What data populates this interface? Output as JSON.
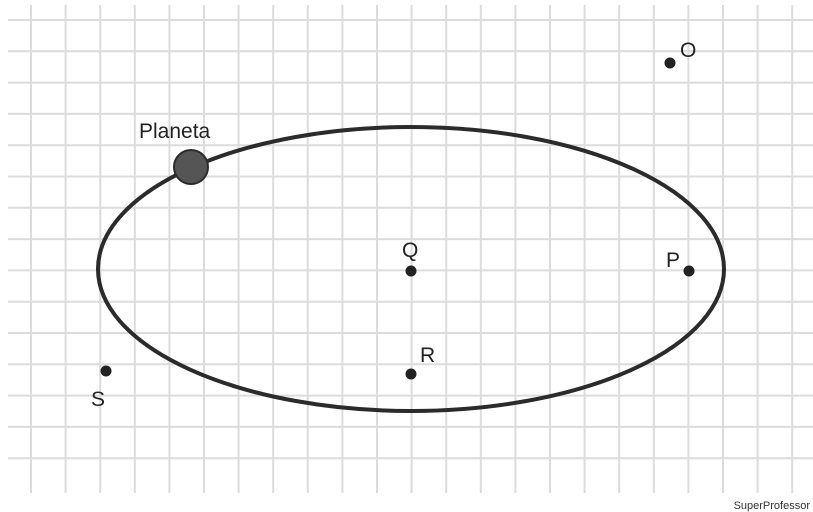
{
  "planet": {
    "label": "Planeta"
  },
  "points": [
    {
      "label": "O"
    },
    {
      "label": "P"
    },
    {
      "label": "Q"
    },
    {
      "label": "R"
    },
    {
      "label": "S"
    }
  ],
  "watermark": "SuperProfessor"
}
